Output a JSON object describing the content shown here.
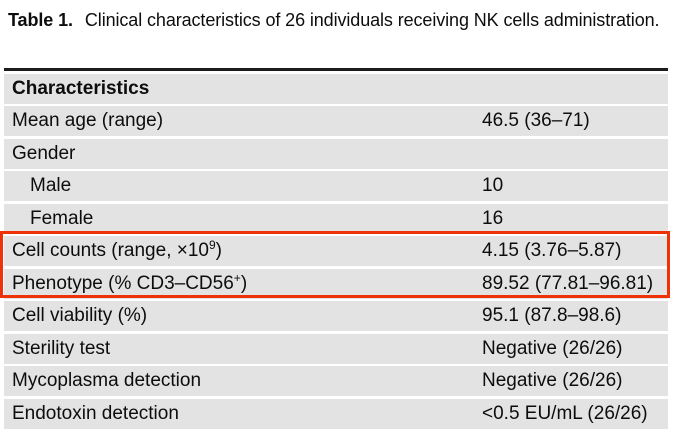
{
  "caption": {
    "label": "Table 1.",
    "text": "Clinical characteristics of 26 individuals receiving NK cells administration."
  },
  "table": {
    "header": "Characteristics",
    "rows": [
      {
        "label_pre": "Mean age (range)",
        "label_sup": "",
        "label_post": "",
        "value": "46.5 (36–71)"
      },
      {
        "label_pre": "Gender",
        "label_sup": "",
        "label_post": "",
        "value": ""
      },
      {
        "label_pre": "Male",
        "label_sup": "",
        "label_post": "",
        "value": "10"
      },
      {
        "label_pre": "Female",
        "label_sup": "",
        "label_post": "",
        "value": "16"
      },
      {
        "label_pre": "Cell counts (range, ×10",
        "label_sup": "9",
        "label_post": ")",
        "value": "4.15 (3.76–5.87)"
      },
      {
        "label_pre": "Phenotype (% CD3–CD56",
        "label_sup": "+",
        "label_post": ")",
        "value": "89.52 (77.81–96.81)"
      },
      {
        "label_pre": "Cell viability (%)",
        "label_sup": "",
        "label_post": "",
        "value": "95.1 (87.8–98.6)"
      },
      {
        "label_pre": "Sterility test",
        "label_sup": "",
        "label_post": "",
        "value": "Negative (26/26)"
      },
      {
        "label_pre": "Mycoplasma detection",
        "label_sup": "",
        "label_post": "",
        "value": "Negative (26/26)"
      },
      {
        "label_pre": "Endotoxin detection",
        "label_sup": "",
        "label_post": "",
        "value": "<0.5 EU/mL (26/26)"
      }
    ],
    "highlighted_row_labels": [
      "Cell counts (range, ×10⁹)",
      "Phenotype (% CD3–CD56⁺)"
    ]
  },
  "colors": {
    "row_band": "#e3e3e3",
    "top_rule": "#1c1c1c",
    "highlight_box": "#f03208",
    "text": "#0d0d0d",
    "background": "#ffffff"
  }
}
